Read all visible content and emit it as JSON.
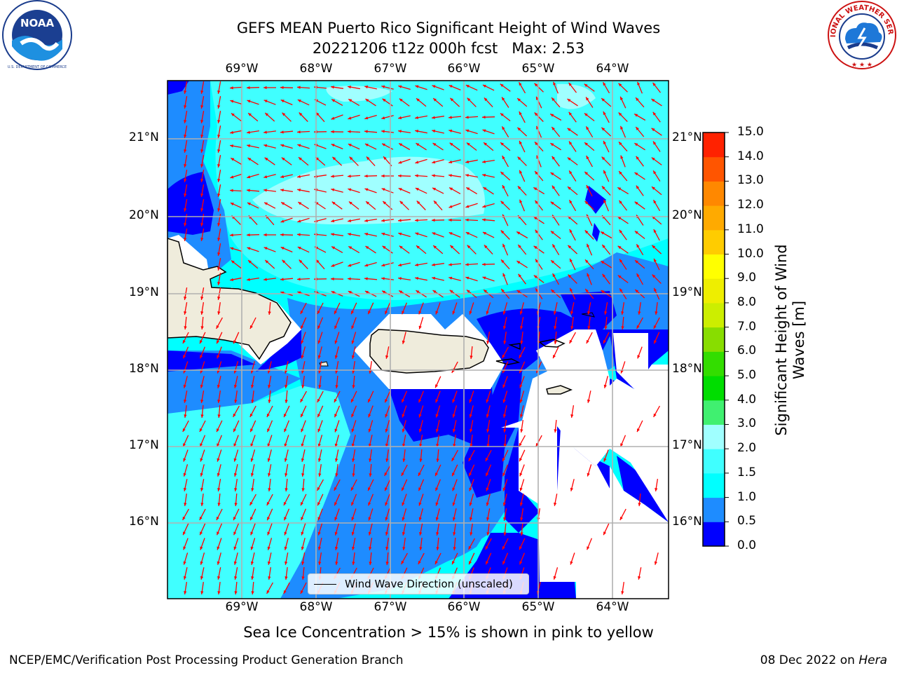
{
  "header": {
    "title_line1": "GEFS MEAN Puerto Rico Significant Height of Wind Waves",
    "title_line2": "20221206 t12z 000h fcst   Max: 2.53"
  },
  "logos": {
    "left": {
      "name": "noaa-logo",
      "text": "NOAA",
      "ring_text": "NATIONAL OCEANIC AND ATMOSPHERIC ADMINISTRATION · U.S. DEPARTMENT OF COMMERCE"
    },
    "right": {
      "name": "nws-logo",
      "ring_text": "NATIONAL WEATHER SERVICE"
    }
  },
  "map": {
    "lon_labels": [
      "69°W",
      "68°W",
      "67°W",
      "66°W",
      "65°W",
      "64°W"
    ],
    "lat_labels": [
      "21°N",
      "20°N",
      "19°N",
      "18°N",
      "17°N",
      "16°N"
    ],
    "legend_label": "Wind Wave Direction (unscaled)",
    "colors": {
      "land": "#efecdc",
      "arrow": "#ff0000",
      "grid": "#b0b0b0"
    }
  },
  "colorbar": {
    "title": "Significant Height of Wind Waves [m]",
    "title_line1": "Significant Height of Wind",
    "title_line2": "Waves [m]",
    "ticks": [
      "15.0",
      "14.0",
      "13.0",
      "12.0",
      "11.0",
      "10.0",
      "9.0",
      "8.0",
      "7.0",
      "6.0",
      "5.0",
      "4.0",
      "3.0",
      "2.0",
      "1.5",
      "1.0",
      "0.5",
      "0.0"
    ],
    "colors": [
      "#0000ff",
      "#1e8cff",
      "#00ffff",
      "#40ffff",
      "#a0ffff",
      "#40f070",
      "#00dd00",
      "#33dd00",
      "#88dd00",
      "#ccee00",
      "#eeee00",
      "#ffff00",
      "#ffcc00",
      "#ffaa00",
      "#ff8800",
      "#ff5500",
      "#ff2200"
    ]
  },
  "notes": {
    "sea_ice": "Sea Ice Concentration > 15% is shown in pink to yellow"
  },
  "footer": {
    "left": "NCEP/EMC/Verification Post Processing Product Generation Branch",
    "date": "08 Dec 2022 on ",
    "host": "Hera"
  }
}
